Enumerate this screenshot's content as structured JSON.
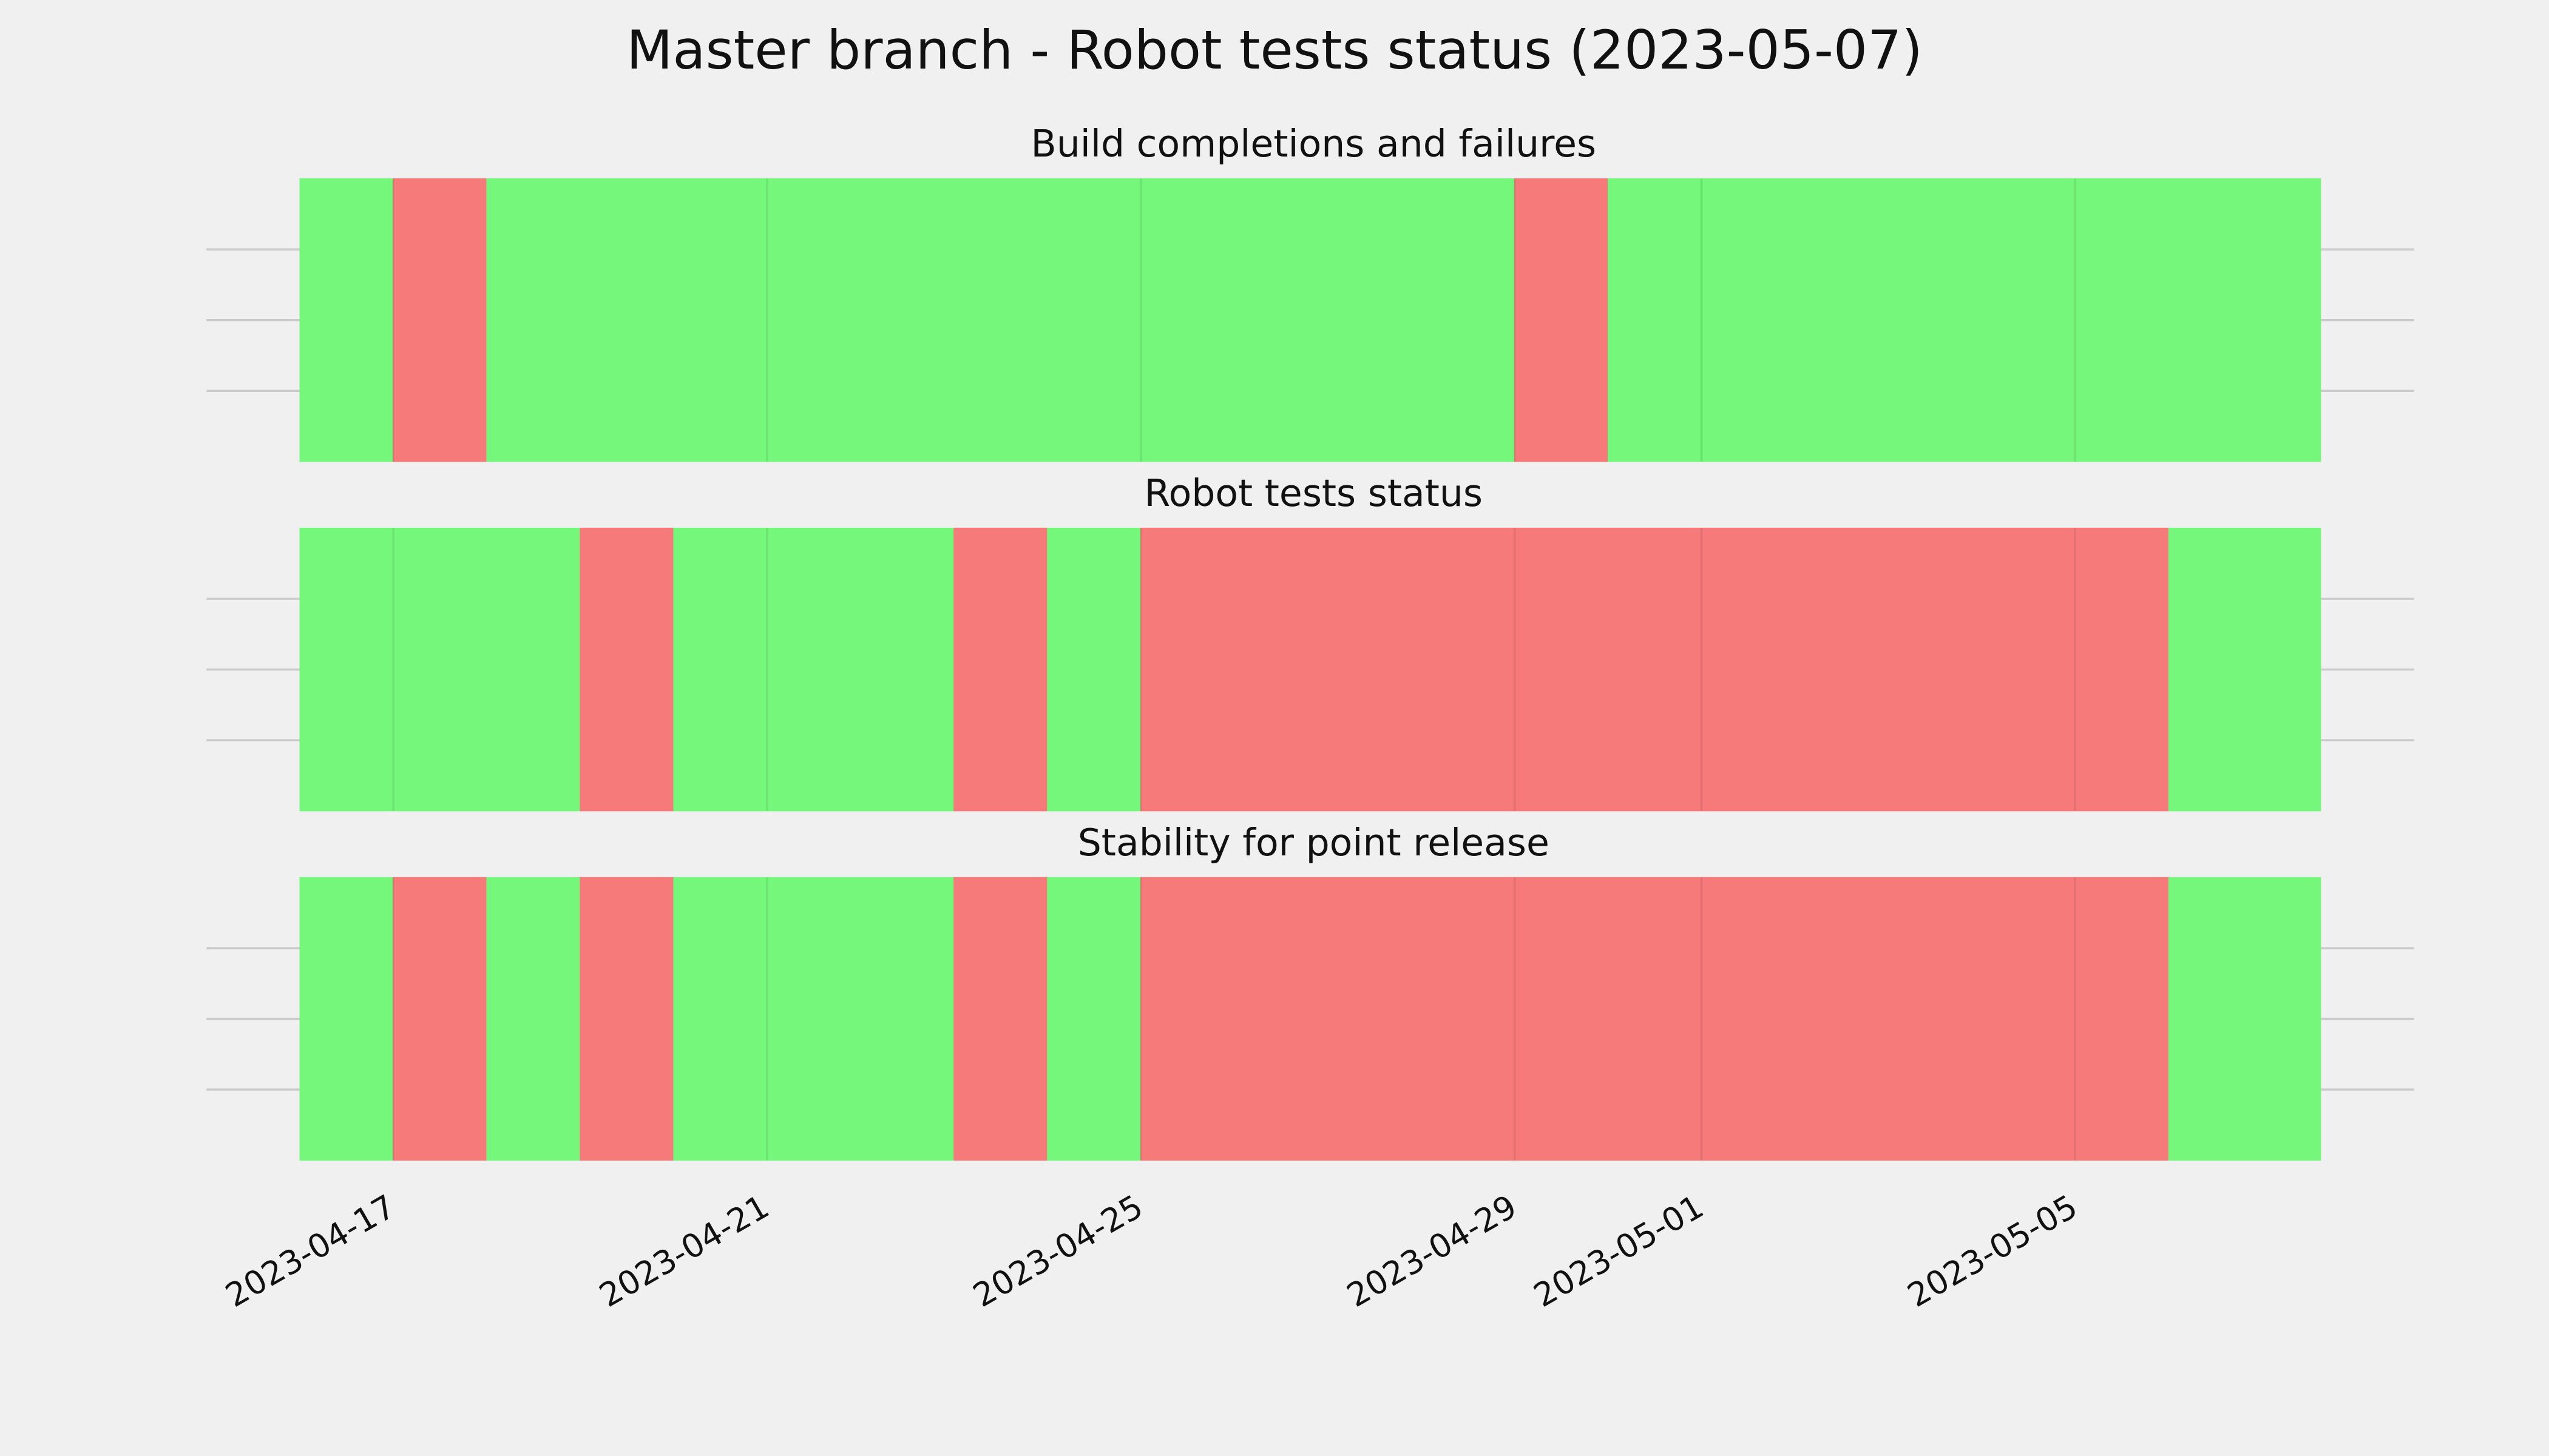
{
  "title": "Master branch - Robot tests status (2023-05-07)",
  "chart_data": [
    {
      "type": "timeline",
      "title": "Build completions and failures",
      "xlim": [
        "2023-04-15",
        "2023-05-08T15:00"
      ],
      "ylim": [
        0,
        1
      ],
      "xticks": [
        "2023-04-17",
        "2023-04-21",
        "2023-04-25",
        "2023-04-29",
        "2023-05-01",
        "2023-05-05"
      ],
      "yticks": [
        0.25,
        0.5,
        0.75
      ],
      "grid": true,
      "spans": [
        {
          "start": "2023-04-16",
          "end": "2023-04-17",
          "color": "#74f77a"
        },
        {
          "start": "2023-04-17",
          "end": "2023-04-18",
          "color": "#f77a7a"
        },
        {
          "start": "2023-04-18",
          "end": "2023-04-29",
          "color": "#74f77a"
        },
        {
          "start": "2023-04-29",
          "end": "2023-04-30",
          "color": "#f77a7a"
        },
        {
          "start": "2023-04-30",
          "end": "2023-05-07T15:00",
          "color": "#74f77a"
        }
      ]
    },
    {
      "type": "timeline",
      "title": "Robot tests status",
      "xlim": [
        "2023-04-15",
        "2023-05-08T15:00"
      ],
      "ylim": [
        0,
        1
      ],
      "xticks": [
        "2023-04-17",
        "2023-04-21",
        "2023-04-25",
        "2023-04-29",
        "2023-05-01",
        "2023-05-05"
      ],
      "yticks": [
        0.25,
        0.5,
        0.75
      ],
      "grid": true,
      "spans": [
        {
          "start": "2023-04-16",
          "end": "2023-04-19",
          "color": "#74f77a"
        },
        {
          "start": "2023-04-19",
          "end": "2023-04-20",
          "color": "#f77a7a"
        },
        {
          "start": "2023-04-20",
          "end": "2023-04-23",
          "color": "#74f77a"
        },
        {
          "start": "2023-04-23",
          "end": "2023-04-24",
          "color": "#f77a7a"
        },
        {
          "start": "2023-04-24",
          "end": "2023-04-25",
          "color": "#74f77a"
        },
        {
          "start": "2023-04-25",
          "end": "2023-05-06",
          "color": "#f77a7a"
        },
        {
          "start": "2023-05-06",
          "end": "2023-05-07T15:00",
          "color": "#74f77a"
        }
      ]
    },
    {
      "type": "timeline",
      "title": "Stability for point release",
      "xlim": [
        "2023-04-15",
        "2023-05-08T15:00"
      ],
      "ylim": [
        0,
        1
      ],
      "xticks": [
        "2023-04-17",
        "2023-04-21",
        "2023-04-25",
        "2023-04-29",
        "2023-05-01",
        "2023-05-05"
      ],
      "yticks": [
        0.25,
        0.5,
        0.75
      ],
      "grid": true,
      "spans": [
        {
          "start": "2023-04-16",
          "end": "2023-04-17",
          "color": "#74f77a"
        },
        {
          "start": "2023-04-17",
          "end": "2023-04-18",
          "color": "#f77a7a"
        },
        {
          "start": "2023-04-18",
          "end": "2023-04-19",
          "color": "#74f77a"
        },
        {
          "start": "2023-04-19",
          "end": "2023-04-20",
          "color": "#f77a7a"
        },
        {
          "start": "2023-04-20",
          "end": "2023-04-23",
          "color": "#74f77a"
        },
        {
          "start": "2023-04-23",
          "end": "2023-04-24",
          "color": "#f77a7a"
        },
        {
          "start": "2023-04-24",
          "end": "2023-04-25",
          "color": "#74f77a"
        },
        {
          "start": "2023-04-25",
          "end": "2023-05-06",
          "color": "#f77a7a"
        },
        {
          "start": "2023-05-06",
          "end": "2023-05-07T15:00",
          "color": "#74f77a"
        }
      ]
    }
  ]
}
